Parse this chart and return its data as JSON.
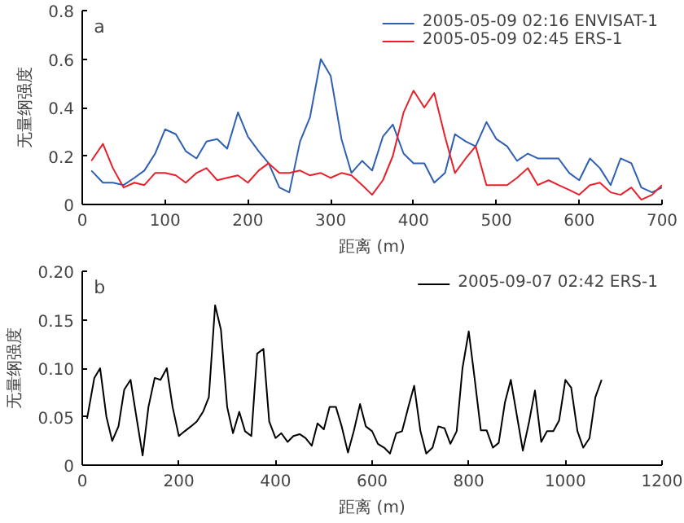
{
  "chart_data": [
    {
      "type": "line",
      "annotations": [
        "a"
      ],
      "xlabel": "距离 (m)",
      "ylabel": "无量纲强度",
      "xlim": [
        0,
        700
      ],
      "ylim": [
        0,
        0.8
      ],
      "xticks": [
        0,
        100,
        200,
        300,
        400,
        500,
        600,
        700
      ],
      "yticks": [
        0,
        0.2,
        0.4,
        0.6,
        0.8
      ],
      "grid": false,
      "legend": "top right",
      "x": [
        11,
        25,
        37,
        50,
        63,
        75,
        88,
        100,
        113,
        125,
        138,
        150,
        163,
        175,
        188,
        200,
        213,
        225,
        238,
        250,
        263,
        275,
        288,
        300,
        313,
        325,
        338,
        350,
        363,
        375,
        388,
        400,
        413,
        425,
        438,
        450,
        463,
        475,
        488,
        500,
        513,
        525,
        538,
        550,
        563,
        575,
        588,
        600,
        613,
        625,
        638,
        650,
        663,
        675,
        688,
        700
      ],
      "series": [
        {
          "name": "2005-05-09 02:16 ENVISAT-1",
          "color": "#2f5fb3",
          "values": [
            0.14,
            0.09,
            0.09,
            0.08,
            0.11,
            0.14,
            0.21,
            0.31,
            0.29,
            0.22,
            0.19,
            0.26,
            0.27,
            0.23,
            0.38,
            0.28,
            0.22,
            0.17,
            0.07,
            0.05,
            0.26,
            0.36,
            0.6,
            0.53,
            0.27,
            0.13,
            0.18,
            0.14,
            0.28,
            0.33,
            0.21,
            0.17,
            0.17,
            0.09,
            0.13,
            0.29,
            0.26,
            0.24,
            0.34,
            0.27,
            0.24,
            0.18,
            0.21,
            0.19,
            0.19,
            0.19,
            0.13,
            0.1,
            0.19,
            0.15,
            0.08,
            0.19,
            0.17,
            0.07,
            0.05,
            0.07
          ]
        },
        {
          "name": "2005-05-09 02:45 ERS-1",
          "color": "#e8202a",
          "values": [
            0.18,
            0.25,
            0.15,
            0.07,
            0.09,
            0.08,
            0.13,
            0.13,
            0.12,
            0.09,
            0.13,
            0.15,
            0.1,
            0.11,
            0.12,
            0.09,
            0.14,
            0.17,
            0.13,
            0.13,
            0.14,
            0.12,
            0.13,
            0.11,
            0.13,
            0.12,
            0.08,
            0.04,
            0.1,
            0.2,
            0.38,
            0.47,
            0.4,
            0.46,
            0.28,
            0.13,
            0.19,
            0.24,
            0.08,
            0.08,
            0.08,
            0.11,
            0.15,
            0.08,
            0.1,
            0.08,
            0.06,
            0.04,
            0.08,
            0.09,
            0.05,
            0.04,
            0.07,
            0.02,
            0.04,
            0.08
          ]
        }
      ]
    },
    {
      "type": "line",
      "annotations": [
        "b"
      ],
      "xlabel": "距离 (m)",
      "ylabel": "无量纲强度",
      "xlim": [
        0,
        1200
      ],
      "ylim": [
        0,
        0.2
      ],
      "xticks": [
        0,
        200,
        400,
        600,
        800,
        1000,
        1200
      ],
      "yticks": [
        0,
        0.05,
        {
          "value": 0.1,
          "label": "0.10"
        },
        0.15,
        {
          "value": 0.2,
          "label": "0.20"
        }
      ],
      "grid": false,
      "legend": "top right",
      "x": [
        10,
        25,
        37,
        50,
        62,
        75,
        87,
        100,
        112,
        125,
        137,
        150,
        162,
        175,
        187,
        200,
        212,
        225,
        237,
        250,
        262,
        275,
        287,
        300,
        312,
        325,
        337,
        350,
        362,
        375,
        387,
        400,
        412,
        425,
        437,
        450,
        462,
        475,
        487,
        500,
        512,
        525,
        537,
        550,
        562,
        575,
        587,
        600,
        612,
        625,
        637,
        650,
        662,
        675,
        687,
        700,
        712,
        725,
        737,
        750,
        762,
        775,
        787,
        800,
        812,
        825,
        837,
        850,
        862,
        875,
        887,
        900,
        912,
        925,
        937,
        950,
        962,
        975,
        987,
        1000,
        1012,
        1025,
        1037,
        1050,
        1062,
        1075
      ],
      "series": [
        {
          "name": "2005-09-07 02:42 ERS-1",
          "color": "#000000",
          "values": [
            0.048,
            0.09,
            0.1,
            0.05,
            0.025,
            0.04,
            0.078,
            0.088,
            0.05,
            0.01,
            0.06,
            0.09,
            0.088,
            0.1,
            0.06,
            0.03,
            0.035,
            0.04,
            0.045,
            0.055,
            0.07,
            0.165,
            0.14,
            0.06,
            0.033,
            0.055,
            0.035,
            0.03,
            0.115,
            0.12,
            0.045,
            0.028,
            0.033,
            0.024,
            0.03,
            0.032,
            0.028,
            0.02,
            0.043,
            0.037,
            0.06,
            0.06,
            0.04,
            0.013,
            0.035,
            0.063,
            0.04,
            0.035,
            0.022,
            0.018,
            0.012,
            0.033,
            0.035,
            0.06,
            0.082,
            0.035,
            0.012,
            0.018,
            0.04,
            0.038,
            0.022,
            0.035,
            0.1,
            0.138,
            0.09,
            0.036,
            0.036,
            0.018,
            0.023,
            0.065,
            0.088,
            0.05,
            0.015,
            0.045,
            0.077,
            0.024,
            0.035,
            0.035,
            0.046,
            0.088,
            0.08,
            0.035,
            0.018,
            0.028,
            0.07,
            0.088
          ]
        }
      ]
    }
  ]
}
